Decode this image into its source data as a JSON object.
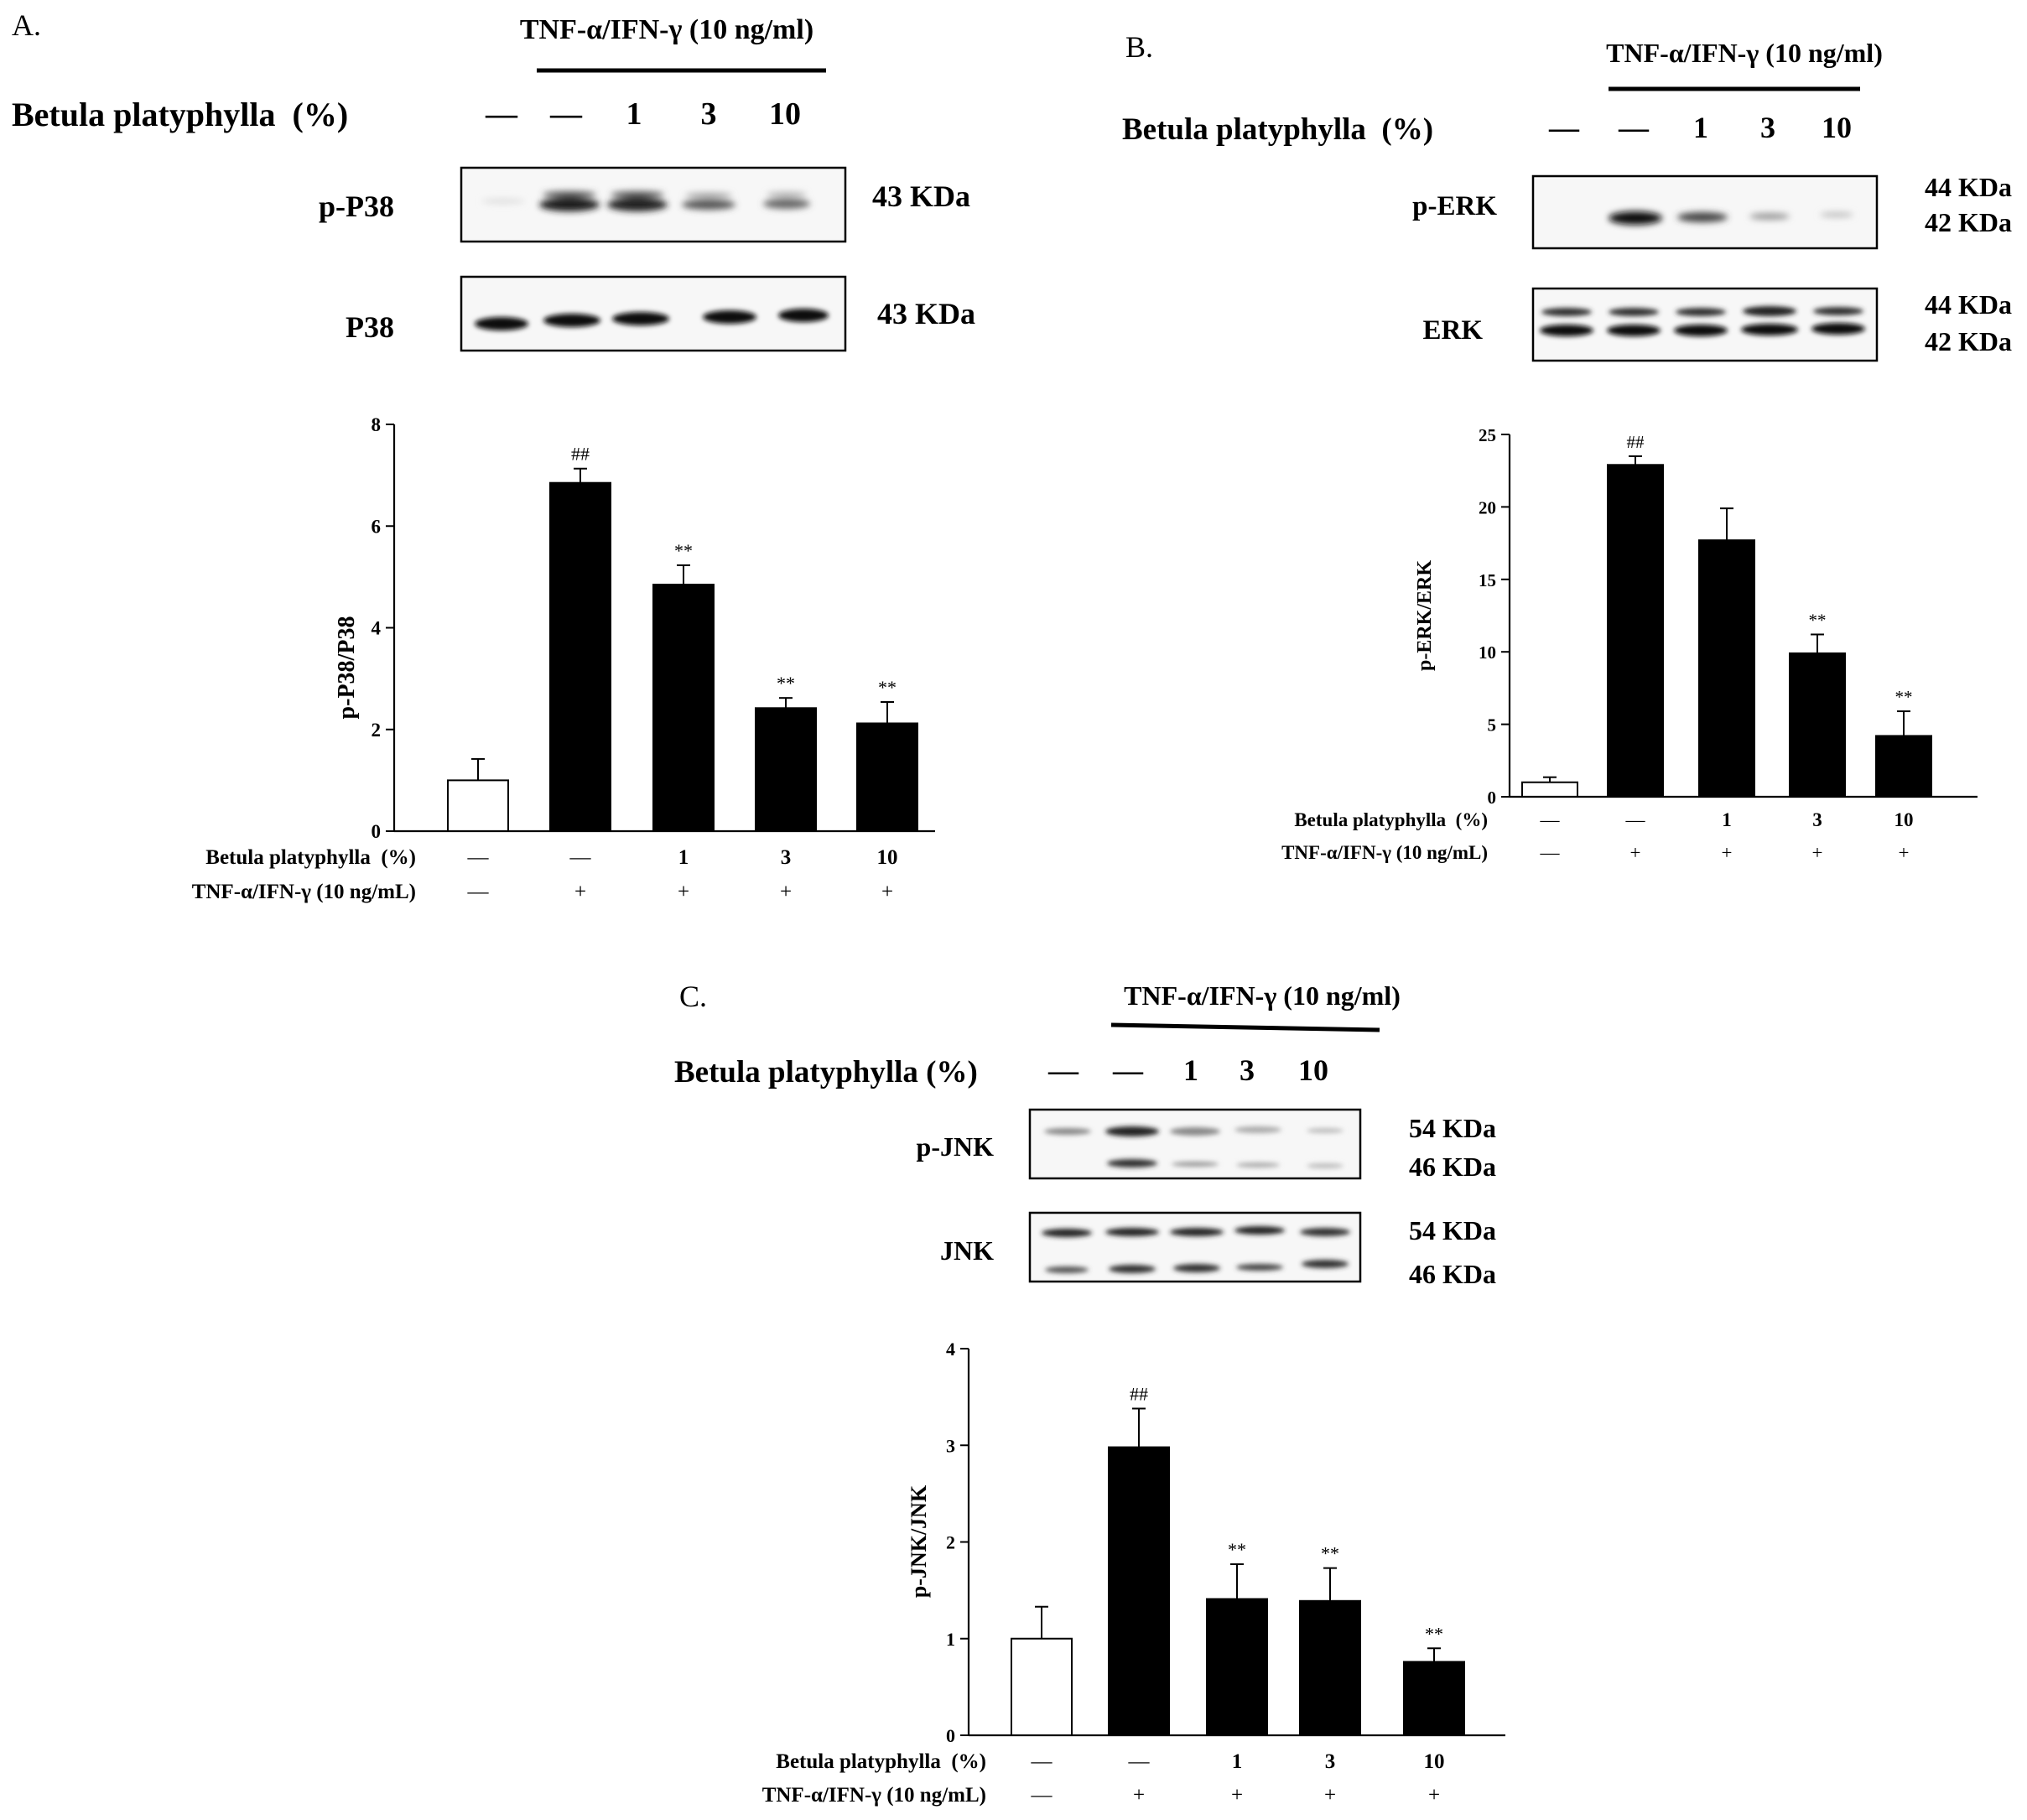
{
  "panels": [
    {
      "letter": "A.",
      "treatment_header": "TNF-α/IFN-γ (10 ng/ml)",
      "betula_header": "Betula platyphylla  (%)",
      "lane_labels": [
        "—",
        "—",
        "1",
        "3",
        "10"
      ],
      "blots": [
        {
          "name": "p-P38",
          "kda": [
            "43 KDa"
          ]
        },
        {
          "name": "P38",
          "kda": [
            "43 KDa"
          ]
        }
      ]
    },
    {
      "letter": "B.",
      "treatment_header": "TNF-α/IFN-γ (10 ng/ml)",
      "betula_header": "Betula platyphylla  (%)",
      "lane_labels": [
        "—",
        "—",
        "1",
        "3",
        "10"
      ],
      "blots": [
        {
          "name": "p-ERK",
          "kda": [
            "44 KDa",
            "42 KDa"
          ]
        },
        {
          "name": "ERK",
          "kda": [
            "44 KDa",
            "42 KDa"
          ]
        }
      ]
    },
    {
      "letter": "C.",
      "treatment_header": "TNF-α/IFN-γ (10 ng/ml)",
      "betula_header": "Betula platyphylla (%)",
      "lane_labels": [
        "—",
        "—",
        "1",
        "3",
        "10"
      ],
      "blots": [
        {
          "name": "p-JNK",
          "kda": [
            "54 KDa",
            "46 KDa"
          ]
        },
        {
          "name": "JNK",
          "kda": [
            "54 KDa",
            "46 KDa"
          ]
        }
      ]
    }
  ],
  "chart_data": [
    {
      "type": "bar",
      "panel": "A",
      "ylabel": "p-P38/P38",
      "ylim": [
        0,
        8
      ],
      "yticks": [
        0,
        2,
        4,
        6,
        8
      ],
      "categories": [
        "—",
        "—",
        "1",
        "3",
        "10"
      ],
      "values": [
        1.0,
        6.85,
        4.85,
        2.42,
        2.12
      ],
      "errors": [
        0.42,
        0.28,
        0.38,
        0.2,
        0.42
      ],
      "bar_colors": [
        "#ffffff",
        "#000000",
        "#000000",
        "#000000",
        "#000000"
      ],
      "annotations": [
        "",
        "##",
        "**",
        "**",
        "**"
      ],
      "row_labels": [
        "Betula platyphylla  (%)",
        "TNF-α/IFN-γ (10 ng/mL)"
      ],
      "betula_row": [
        "—",
        "—",
        "1",
        "3",
        "10"
      ],
      "tnf_row": [
        "—",
        "+",
        "+",
        "+",
        "+"
      ]
    },
    {
      "type": "bar",
      "panel": "B",
      "ylabel": "p-ERK/ERK",
      "ylim": [
        0,
        25
      ],
      "yticks": [
        0,
        5,
        10,
        15,
        20,
        25
      ],
      "categories": [
        "—",
        "—",
        "1",
        "3",
        "10"
      ],
      "values": [
        1.0,
        22.9,
        17.7,
        9.9,
        4.2
      ],
      "errors": [
        0.35,
        0.6,
        2.2,
        1.3,
        1.7
      ],
      "bar_colors": [
        "#ffffff",
        "#000000",
        "#000000",
        "#000000",
        "#000000"
      ],
      "annotations": [
        "",
        "##",
        "",
        "**",
        "**"
      ],
      "row_labels": [
        "Betula platyphylla  (%)",
        "TNF-α/IFN-γ (10 ng/mL)"
      ],
      "betula_row": [
        "—",
        "—",
        "1",
        "3",
        "10"
      ],
      "tnf_row": [
        "—",
        "+",
        "+",
        "+",
        "+"
      ]
    },
    {
      "type": "bar",
      "panel": "C",
      "ylabel": "p-JNK/JNK",
      "ylim": [
        0,
        4
      ],
      "yticks": [
        0,
        1,
        2,
        3,
        4
      ],
      "categories": [
        "—",
        "—",
        "1",
        "3",
        "10"
      ],
      "values": [
        1.0,
        2.98,
        1.41,
        1.39,
        0.76
      ],
      "errors": [
        0.33,
        0.4,
        0.36,
        0.34,
        0.14
      ],
      "bar_colors": [
        "#ffffff",
        "#000000",
        "#000000",
        "#000000",
        "#000000"
      ],
      "annotations": [
        "",
        "##",
        "**",
        "**",
        "**"
      ],
      "row_labels": [
        "Betula platyphylla  (%)",
        "TNF-α/IFN-γ (10 ng/mL)"
      ],
      "betula_row": [
        "—",
        "—",
        "1",
        "3",
        "10"
      ],
      "tnf_row": [
        "—",
        "+",
        "+",
        "+",
        "+"
      ]
    }
  ]
}
